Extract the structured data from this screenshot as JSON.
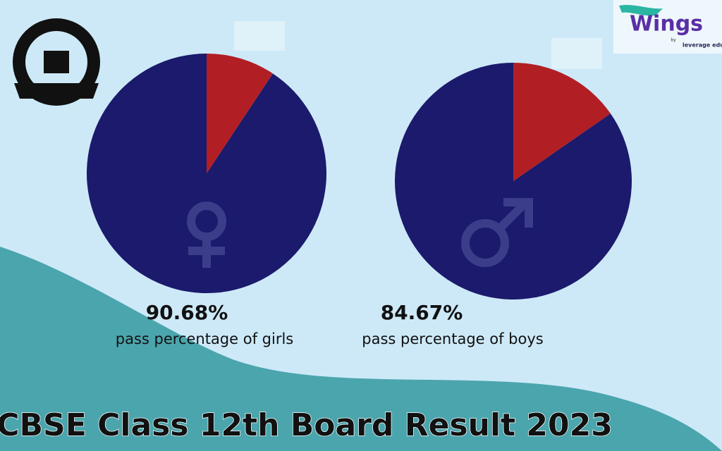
{
  "title": "CBSE Class 12th Board Result 2023",
  "logo": {
    "name": "Wings",
    "by": "by",
    "brand": "leverage edu"
  },
  "chart_data": [
    {
      "type": "pie",
      "caption": "pass percentage of girls",
      "values": [
        90.68,
        9.32
      ],
      "value_labels": [
        "90.68%",
        null
      ],
      "colors": [
        "#1b1a6c",
        "#b11f24"
      ]
    },
    {
      "type": "pie",
      "caption": "pass percentage of boys",
      "values": [
        84.67,
        15.33
      ],
      "value_labels": [
        "84.67%",
        null
      ],
      "colors": [
        "#1b1a6c",
        "#b11f24"
      ]
    }
  ]
}
